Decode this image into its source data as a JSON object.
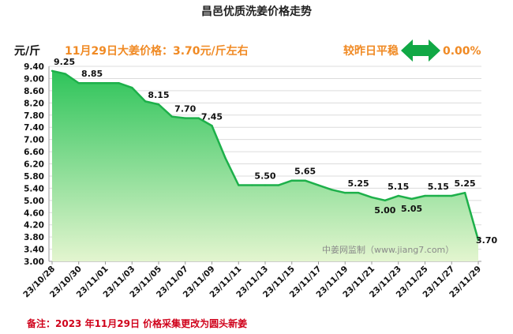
{
  "chart_data": {
    "type": "area",
    "title": "昌邑优质洗姜价格走势",
    "subtitle": "11月29日大姜价格：3.70元/斤左右",
    "ylabel": "元/斤",
    "ylim": [
      3.0,
      9.4
    ],
    "yticks": [
      "9.40",
      "9.00",
      "8.60",
      "8.20",
      "7.80",
      "7.40",
      "7.00",
      "6.60",
      "6.20",
      "5.80",
      "5.40",
      "5.00",
      "4.60",
      "4.20",
      "3.80",
      "3.40",
      "3.00"
    ],
    "grid": "horizontal",
    "x": [
      "23/10/28",
      "23/10/29",
      "23/10/30",
      "23/10/31",
      "23/11/01",
      "23/11/02",
      "23/11/03",
      "23/11/04",
      "23/11/05",
      "23/11/06",
      "23/11/07",
      "23/11/08",
      "23/11/09",
      "23/11/10",
      "23/11/11",
      "23/11/12",
      "23/11/13",
      "23/11/14",
      "23/11/15",
      "23/11/16",
      "23/11/17",
      "23/11/18",
      "23/11/19",
      "23/11/20",
      "23/11/21",
      "23/11/22",
      "23/11/23",
      "23/11/24",
      "23/11/25",
      "23/11/26",
      "23/11/27",
      "23/11/28",
      "23/11/29"
    ],
    "xticks": [
      "23/10/28",
      "23/10/30",
      "23/11/01",
      "23/11/03",
      "23/11/05",
      "23/11/07",
      "23/11/09",
      "23/11/11",
      "23/11/13",
      "23/11/15",
      "23/11/17",
      "23/11/19",
      "23/11/21",
      "23/11/23",
      "23/11/25",
      "23/11/27",
      "23/11/29"
    ],
    "values": [
      9.25,
      9.15,
      8.85,
      8.85,
      8.85,
      8.85,
      8.7,
      8.25,
      8.15,
      7.75,
      7.7,
      7.7,
      7.45,
      6.4,
      5.5,
      5.5,
      5.5,
      5.5,
      5.65,
      5.65,
      5.5,
      5.35,
      5.25,
      5.25,
      5.1,
      5.0,
      5.15,
      5.05,
      5.15,
      5.15,
      5.15,
      5.25,
      3.7
    ],
    "data_labels": [
      {
        "index": 0,
        "text": "9.25"
      },
      {
        "index": 3,
        "text": "8.85"
      },
      {
        "index": 8,
        "text": "8.15"
      },
      {
        "index": 10,
        "text": "7.70"
      },
      {
        "index": 12,
        "text": "7.45"
      },
      {
        "index": 16,
        "text": "5.50"
      },
      {
        "index": 19,
        "text": "5.65"
      },
      {
        "index": 23,
        "text": "5.25"
      },
      {
        "index": 25,
        "text": "5.00"
      },
      {
        "index": 26,
        "text": "5.15"
      },
      {
        "index": 27,
        "text": "5.05"
      },
      {
        "index": 29,
        "text": "5.15"
      },
      {
        "index": 31,
        "text": "5.25"
      },
      {
        "index": 32,
        "text": "3.70"
      }
    ],
    "comparison_text": "较昨日平稳",
    "change_pct": "0.00%",
    "watermark": "中姜网监制（www.jiang7.com）",
    "note": "备注：2023 年11月29日 价格采集更改为圆头新姜",
    "colors": {
      "line": "#1db04a",
      "fill_top": "#2ec45a",
      "fill_bottom": "#e3f5cf",
      "arrow": "#11a845",
      "accent": "#f08a24",
      "note": "#d0021b"
    }
  }
}
